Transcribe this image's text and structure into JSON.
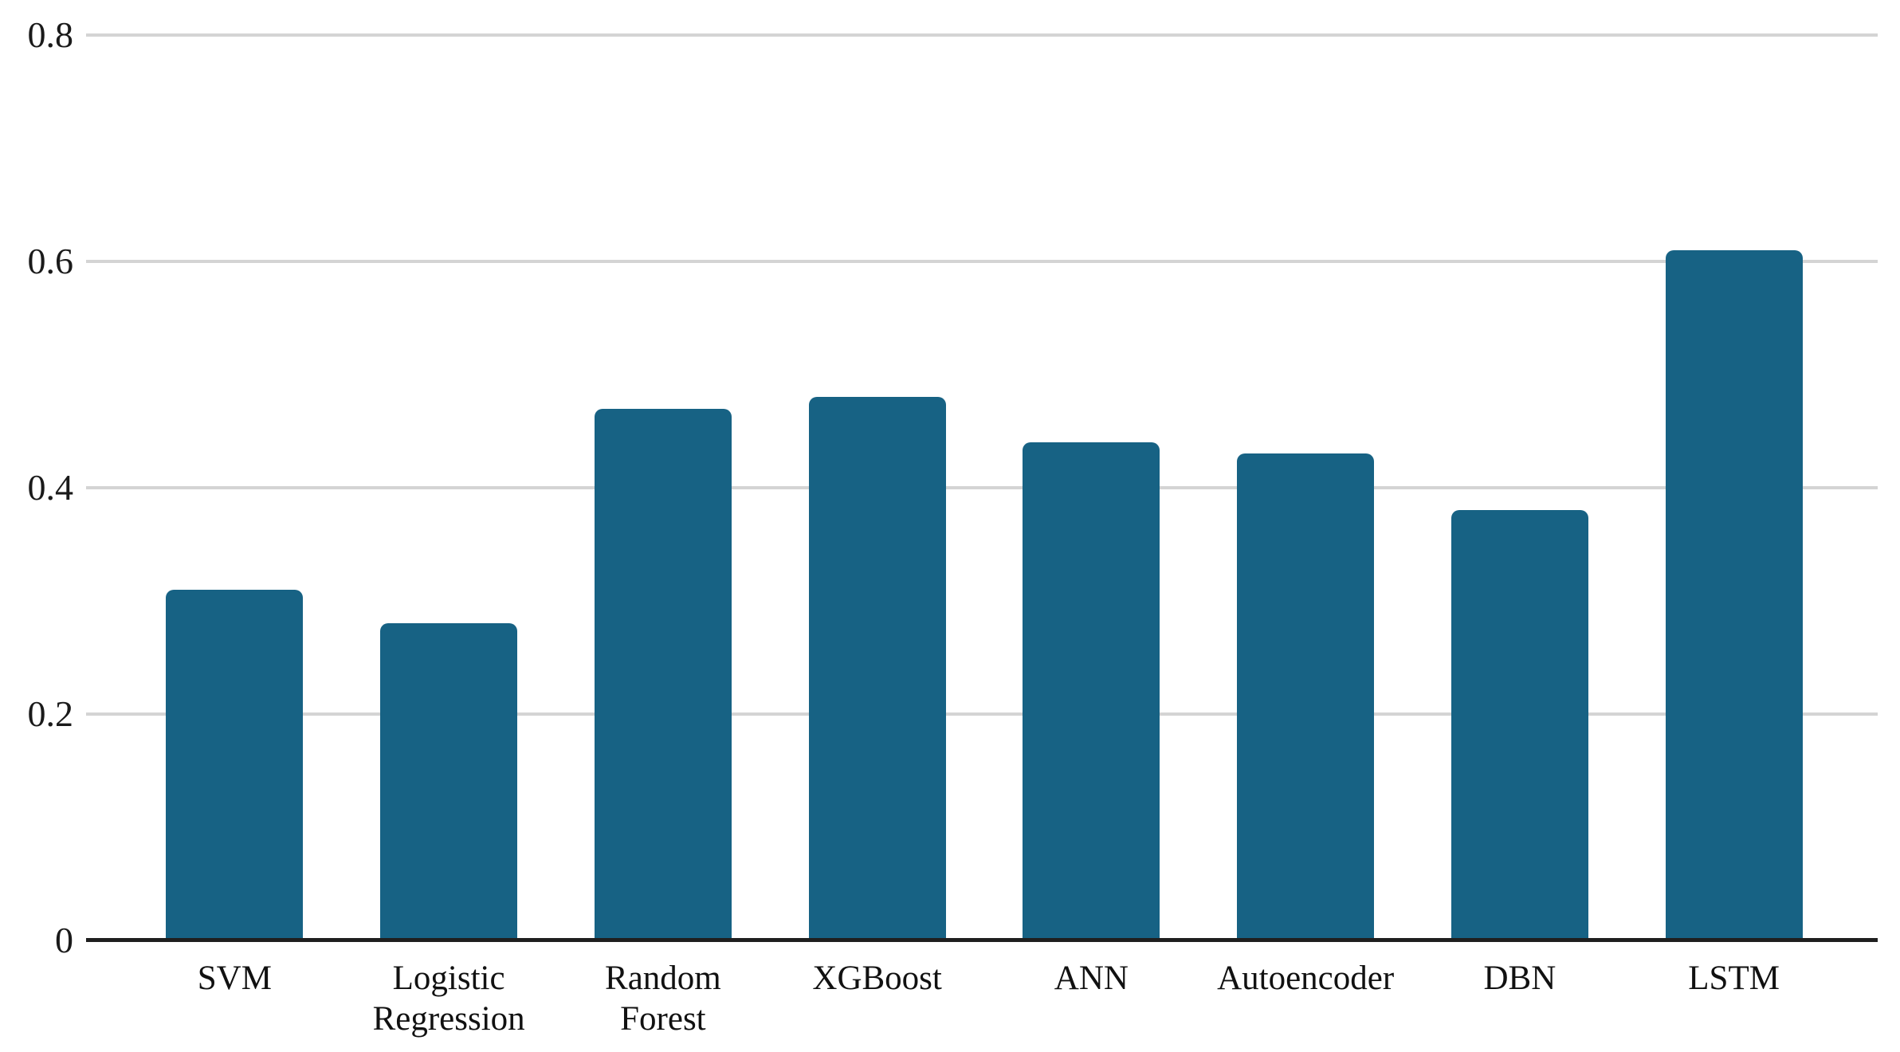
{
  "chart_data": {
    "type": "bar",
    "categories": [
      "SVM",
      "Logistic Regression",
      "Random Forest",
      "XGBoost",
      "ANN",
      "Autoencoder",
      "DBN",
      "LSTM"
    ],
    "values": [
      0.31,
      0.28,
      0.47,
      0.48,
      0.44,
      0.43,
      0.38,
      0.61
    ],
    "title": "",
    "xlabel": "",
    "ylabel": "",
    "ylim": [
      0,
      0.8
    ],
    "y_tick_labels": [
      "0.8",
      "0.6",
      "0.4",
      "0.2",
      "0"
    ],
    "y_tick_values": [
      0.8,
      0.6,
      0.4,
      0.2,
      0
    ],
    "grid": true,
    "legend": false,
    "colors": {
      "bar_fill": "#176284",
      "gridline": "#d4d4d4",
      "axis_line": "#1f1f1f",
      "tick_text": "#1a1a1a",
      "background": "#ffffff"
    }
  }
}
